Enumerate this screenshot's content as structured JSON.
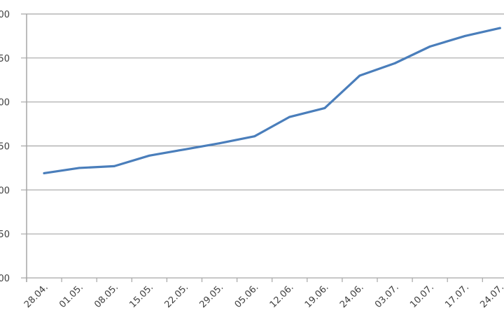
{
  "chart_data": {
    "type": "line",
    "title": "",
    "xlabel": "",
    "ylabel": "",
    "categories": [
      "28.04.",
      "01.05.",
      "08.05.",
      "15.05.",
      "22.05.",
      "29.05.",
      "05.06.",
      "12.06.",
      "19.06.",
      "24.06.",
      "03.07.",
      "10.07.",
      "17.07.",
      "24.07."
    ],
    "y_tick_labels_visible": [
      "00",
      "50",
      "00",
      "50",
      "00",
      "50",
      "00"
    ],
    "ylim": [
      0,
      300
    ],
    "y_tick_step": 50,
    "grid": "horizontal",
    "legend": "none",
    "series": [
      {
        "color": "#4a7ebb",
        "values": [
          119,
          125,
          127,
          139,
          146,
          153,
          161,
          183,
          193,
          230,
          244,
          263,
          275,
          284
        ]
      }
    ]
  }
}
